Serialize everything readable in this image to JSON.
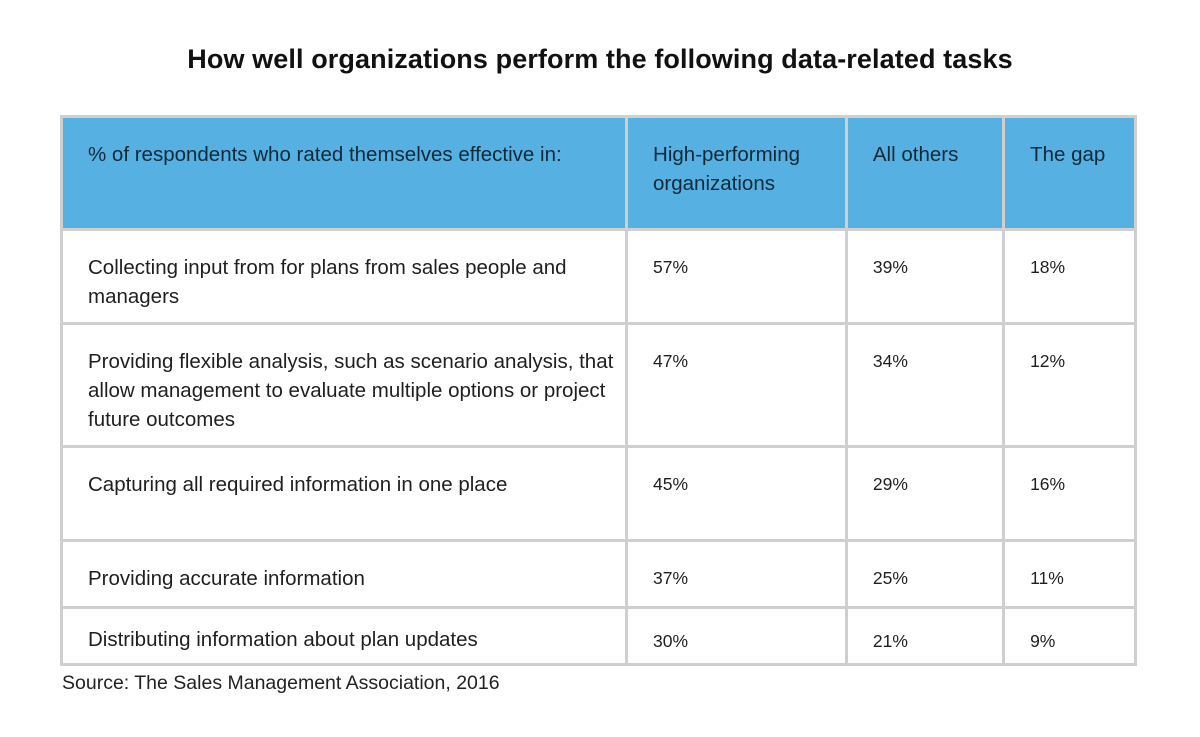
{
  "chart_data": {
    "type": "table",
    "title": "How well organizations perform the following data-related tasks",
    "columns": [
      "% of respondents who rated themselves effective in:",
      "High-performing organizations",
      "All others",
      "The gap"
    ],
    "rows": [
      {
        "task": "Collecting input from for plans from sales people and managers",
        "high": "57%",
        "others": "39%",
        "gap": "18%"
      },
      {
        "task": "Providing flexible analysis, such as scenario analysis, that allow management to evaluate multiple options or project future outcomes",
        "high": "47%",
        "others": "34%",
        "gap": "12%"
      },
      {
        "task": "Capturing all required information in one place",
        "high": "45%",
        "others": "29%",
        "gap": "16%"
      },
      {
        "task": "Providing accurate information",
        "high": "37%",
        "others": "25%",
        "gap": "11%"
      },
      {
        "task": "Distributing information about plan updates",
        "high": "30%",
        "others": "21%",
        "gap": "9%"
      }
    ],
    "source": "Source: The Sales Management Association, 2016"
  },
  "colors": {
    "header_background": "#56b1e2",
    "grid_lines": "#cfcfcf"
  }
}
